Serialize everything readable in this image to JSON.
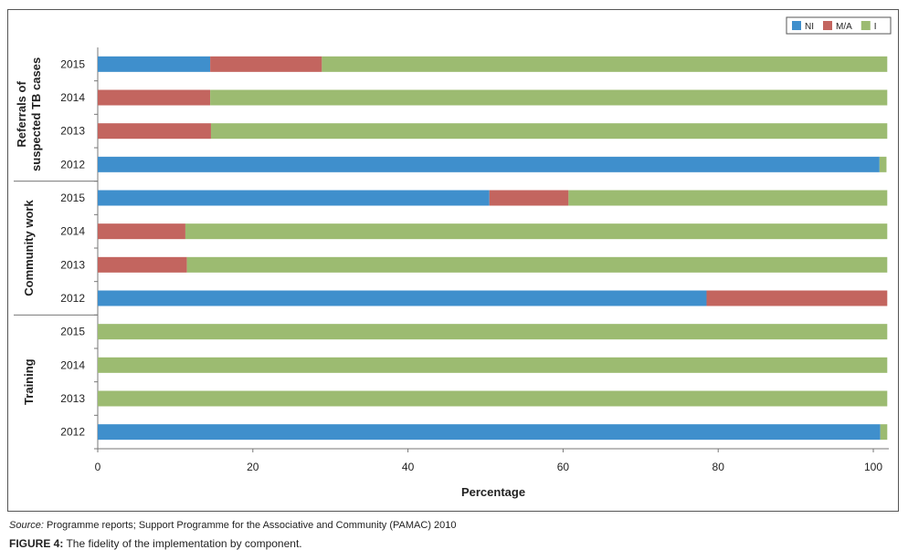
{
  "chart_data": {
    "type": "stacked_barh",
    "categories": [
      "2015",
      "2014",
      "2013",
      "2012",
      "2015",
      "2014",
      "2013",
      "2012",
      "2015",
      "2014",
      "2013",
      "2012"
    ],
    "groups": [
      {
        "label": [
          "Referrals of",
          "suspected TB cases"
        ],
        "start": 0,
        "end": 3
      },
      {
        "label": [
          "Community work"
        ],
        "start": 4,
        "end": 7
      },
      {
        "label": [
          "Training"
        ],
        "start": 8,
        "end": 11
      }
    ],
    "series": [
      {
        "name": "NI",
        "color": "#3f8fcc",
        "values": [
          14.5,
          0,
          0,
          100.8,
          50.5,
          0,
          0,
          78.5,
          0,
          0,
          0,
          100.9
        ]
      },
      {
        "name": "M/A",
        "color": "#c3655f",
        "values": [
          14.4,
          14.5,
          14.6,
          0,
          10.2,
          11.3,
          11.5,
          23.3,
          0,
          0,
          0,
          0
        ]
      },
      {
        "name": "I",
        "color": "#9cbb71",
        "values": [
          72.9,
          87.3,
          87.2,
          0.9,
          41.1,
          90.5,
          90.3,
          0,
          101.8,
          101.8,
          101.8,
          0.9
        ]
      }
    ],
    "xlabel": "Percentage",
    "xlim": [
      0,
      102
    ],
    "xticks": [
      0,
      20,
      40,
      60,
      80,
      100
    ],
    "legend": "top-right",
    "source_label": "Source:",
    "source_text": "Programme reports; Support Programme for the Associative and Community (PAMAC) 2010",
    "caption_label": "FIGURE 4:",
    "caption_text": "The fidelity of the implementation by component."
  }
}
